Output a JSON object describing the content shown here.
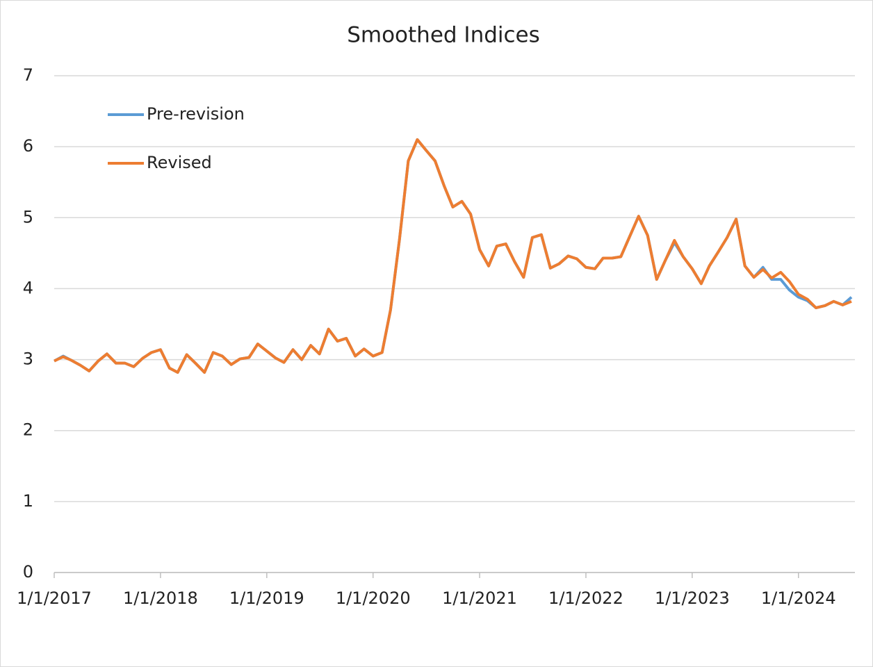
{
  "chart_data": {
    "type": "line",
    "title": "Smoothed Indices",
    "x": [
      "1/1/2017",
      "2/1/2017",
      "3/1/2017",
      "4/1/2017",
      "5/1/2017",
      "6/1/2017",
      "7/1/2017",
      "8/1/2017",
      "9/1/2017",
      "10/1/2017",
      "11/1/2017",
      "12/1/2017",
      "1/1/2018",
      "2/1/2018",
      "3/1/2018",
      "4/1/2018",
      "5/1/2018",
      "6/1/2018",
      "7/1/2018",
      "8/1/2018",
      "9/1/2018",
      "10/1/2018",
      "11/1/2018",
      "12/1/2018",
      "1/1/2019",
      "2/1/2019",
      "3/1/2019",
      "4/1/2019",
      "5/1/2019",
      "6/1/2019",
      "7/1/2019",
      "8/1/2019",
      "9/1/2019",
      "10/1/2019",
      "11/1/2019",
      "12/1/2019",
      "1/1/2020",
      "2/1/2020",
      "3/1/2020",
      "4/1/2020",
      "5/1/2020",
      "6/1/2020",
      "7/1/2020",
      "8/1/2020",
      "9/1/2020",
      "10/1/2020",
      "11/1/2020",
      "12/1/2020",
      "1/1/2021",
      "2/1/2021",
      "3/1/2021",
      "4/1/2021",
      "5/1/2021",
      "6/1/2021",
      "7/1/2021",
      "8/1/2021",
      "9/1/2021",
      "10/1/2021",
      "11/1/2021",
      "12/1/2021",
      "1/1/2022",
      "2/1/2022",
      "3/1/2022",
      "4/1/2022",
      "5/1/2022",
      "6/1/2022",
      "7/1/2022",
      "8/1/2022",
      "9/1/2022",
      "10/1/2022",
      "11/1/2022",
      "12/1/2022",
      "1/1/2023",
      "2/1/2023",
      "3/1/2023",
      "4/1/2023",
      "5/1/2023",
      "6/1/2023",
      "7/1/2023",
      "8/1/2023",
      "9/1/2023",
      "10/1/2023",
      "11/1/2023",
      "12/1/2023",
      "1/1/2024",
      "2/1/2024",
      "3/1/2024",
      "4/1/2024",
      "5/1/2024",
      "6/1/2024",
      "7/1/2024"
    ],
    "series": [
      {
        "name": "Pre-revision",
        "color": "#5b9bd5",
        "values": [
          2.98,
          3.05,
          2.99,
          2.92,
          2.84,
          2.98,
          3.08,
          2.95,
          2.95,
          2.9,
          3.02,
          3.1,
          3.14,
          2.88,
          2.82,
          3.07,
          2.95,
          2.82,
          3.1,
          3.05,
          2.93,
          3.01,
          3.03,
          3.22,
          3.12,
          3.02,
          2.96,
          3.14,
          3.0,
          3.2,
          3.08,
          3.43,
          3.26,
          3.3,
          3.05,
          3.15,
          3.05,
          3.1,
          3.7,
          4.7,
          5.8,
          6.1,
          5.95,
          5.8,
          5.45,
          5.15,
          5.23,
          5.05,
          4.55,
          4.32,
          4.6,
          4.63,
          4.38,
          4.16,
          4.72,
          4.76,
          4.29,
          4.35,
          4.46,
          4.42,
          4.3,
          4.28,
          4.43,
          4.43,
          4.45,
          4.74,
          5.02,
          4.75,
          4.13,
          4.4,
          4.65,
          4.45,
          4.28,
          4.07,
          4.32,
          4.52,
          4.72,
          4.98,
          4.32,
          4.16,
          4.3,
          4.13,
          4.13,
          3.98,
          3.88,
          3.83,
          3.73,
          3.76,
          3.82,
          3.77,
          3.88
        ]
      },
      {
        "name": "Revised",
        "color": "#ed7d31",
        "values": [
          2.98,
          3.04,
          2.99,
          2.92,
          2.84,
          2.98,
          3.08,
          2.95,
          2.95,
          2.9,
          3.02,
          3.1,
          3.14,
          2.88,
          2.82,
          3.07,
          2.95,
          2.82,
          3.1,
          3.05,
          2.93,
          3.01,
          3.03,
          3.22,
          3.12,
          3.02,
          2.96,
          3.14,
          3.0,
          3.2,
          3.08,
          3.43,
          3.26,
          3.3,
          3.05,
          3.15,
          3.05,
          3.1,
          3.7,
          4.7,
          5.8,
          6.1,
          5.95,
          5.8,
          5.45,
          5.15,
          5.23,
          5.05,
          4.55,
          4.32,
          4.6,
          4.63,
          4.38,
          4.16,
          4.72,
          4.76,
          4.29,
          4.35,
          4.46,
          4.42,
          4.3,
          4.28,
          4.43,
          4.43,
          4.45,
          4.74,
          5.02,
          4.75,
          4.13,
          4.4,
          4.68,
          4.45,
          4.28,
          4.07,
          4.32,
          4.52,
          4.72,
          4.98,
          4.32,
          4.16,
          4.27,
          4.15,
          4.23,
          4.1,
          3.92,
          3.85,
          3.73,
          3.76,
          3.82,
          3.77,
          3.82
        ]
      }
    ],
    "xlim": [
      "1/1/2017",
      "7/1/2024"
    ],
    "xticks": [
      "1/1/2017",
      "1/1/2018",
      "1/1/2019",
      "1/1/2020",
      "1/1/2021",
      "1/1/2022",
      "1/1/2023",
      "1/1/2024"
    ],
    "ylim": [
      0,
      7
    ],
    "yticks": [
      0,
      1,
      2,
      3,
      4,
      5,
      6,
      7
    ],
    "grid": true,
    "legend": "upper left"
  }
}
